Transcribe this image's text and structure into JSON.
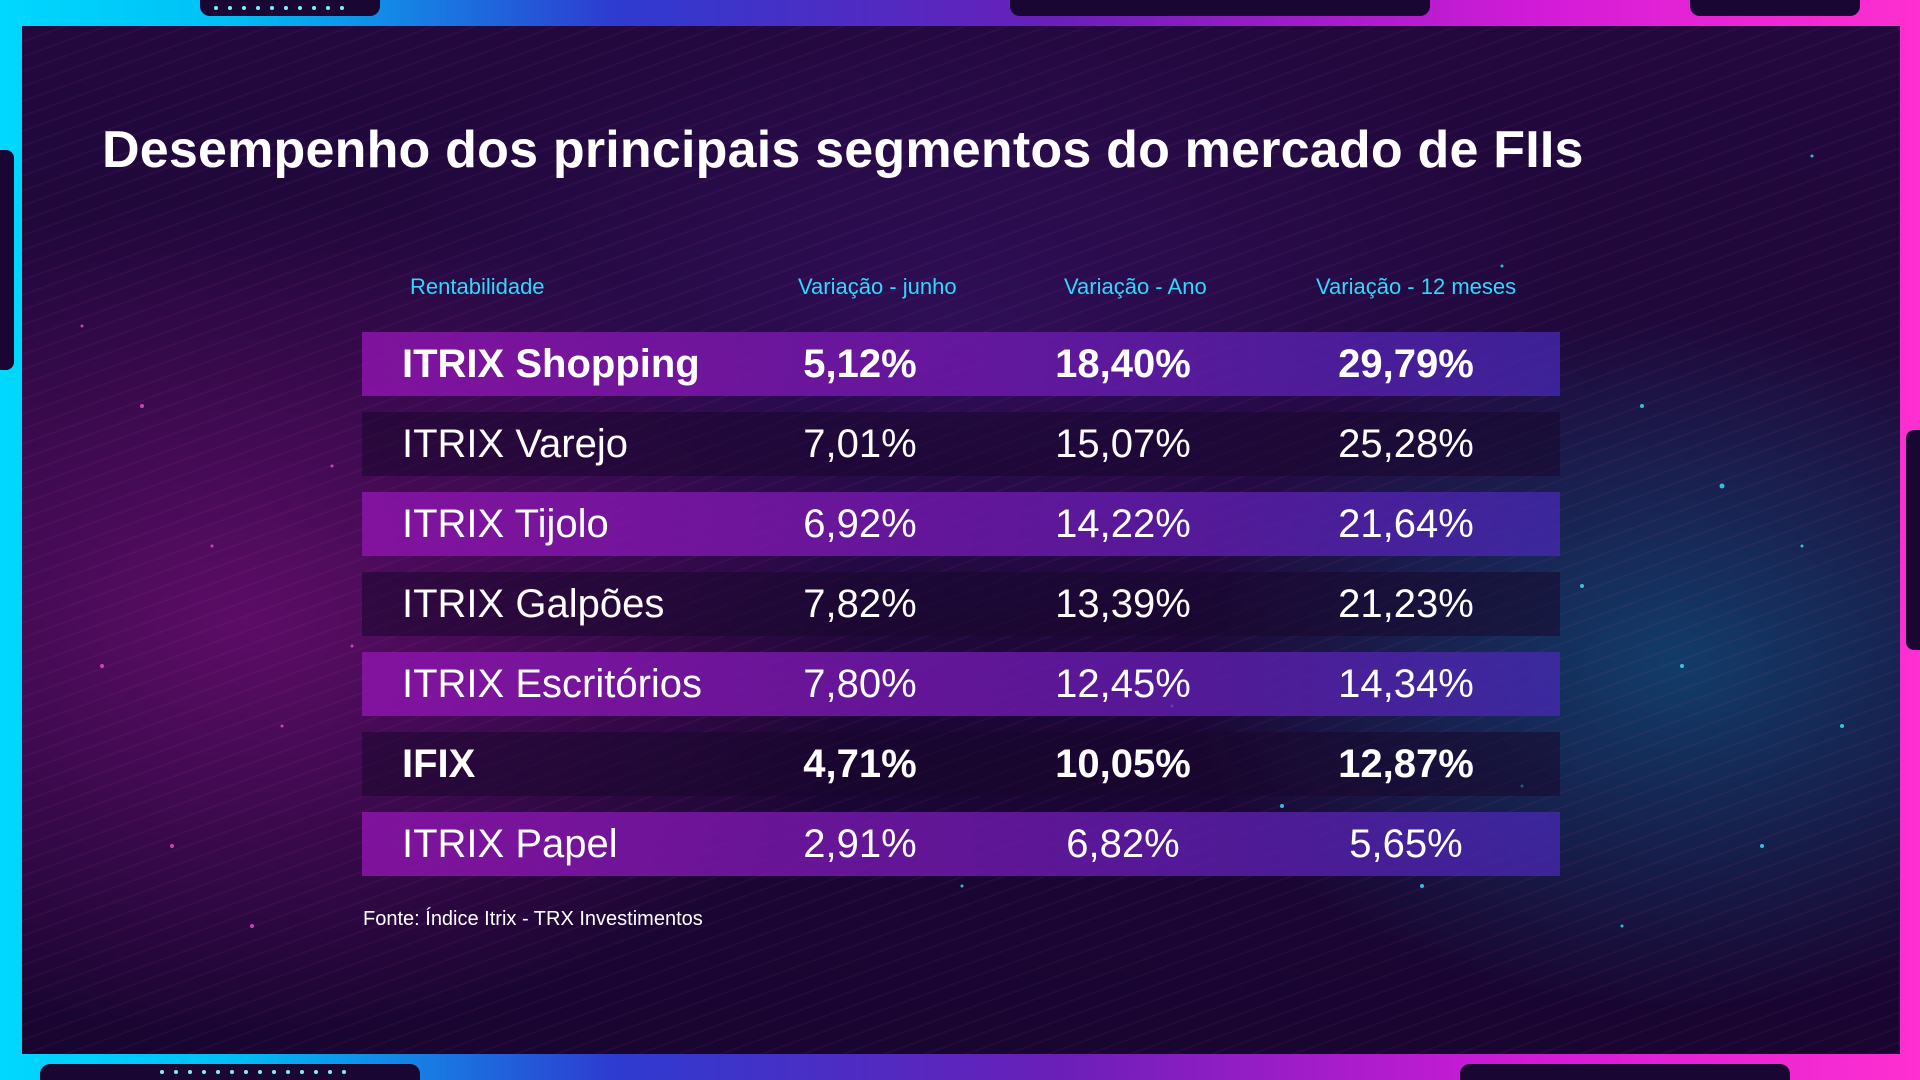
{
  "title": "Desempenho dos principais segmentos do mercado de FIIs",
  "table": {
    "headers": [
      "Rentabilidade",
      "Variação - junho",
      "Variação - Ano",
      "Variação - 12 meses"
    ],
    "rows": [
      {
        "name": "ITRIX Shopping",
        "junho": "5,12%",
        "ano": "18,40%",
        "doze_meses": "29,79%",
        "highlight": true
      },
      {
        "name": "ITRIX Varejo",
        "junho": "7,01%",
        "ano": "15,07%",
        "doze_meses": "25,28%",
        "highlight": false
      },
      {
        "name": "ITRIX Tijolo",
        "junho": "6,92%",
        "ano": "14,22%",
        "doze_meses": "21,64%",
        "highlight": false
      },
      {
        "name": "ITRIX Galpões",
        "junho": "7,82%",
        "ano": "13,39%",
        "doze_meses": "21,23%",
        "highlight": false
      },
      {
        "name": "ITRIX Escritórios",
        "junho": "7,80%",
        "ano": "12,45%",
        "doze_meses": "14,34%",
        "highlight": false
      },
      {
        "name": "IFIX",
        "junho": "4,71%",
        "ano": "10,05%",
        "doze_meses": "12,87%",
        "highlight": true
      },
      {
        "name": "ITRIX Papel",
        "junho": "2,91%",
        "ano": "6,82%",
        "doze_meses": "5,65%",
        "highlight": false
      }
    ]
  },
  "source": "Fonte: Índice Itrix - TRX Investimentos",
  "colors": {
    "header_text": "#2fd8ff",
    "row_shade": "#8c14aa",
    "background": "#1c0736",
    "frame_left": "#00d8ff",
    "frame_right": "#ff2fd0"
  }
}
